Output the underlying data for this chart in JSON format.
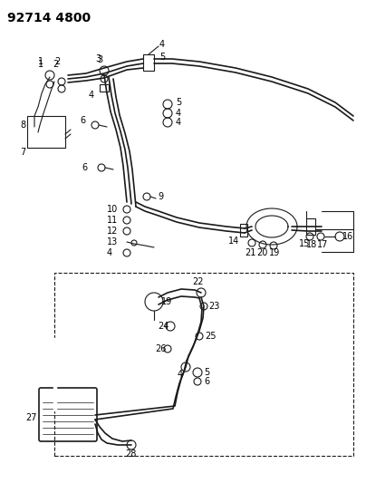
{
  "title": "92714 4800",
  "bg_color": "#ffffff",
  "line_color": "#1a1a1a",
  "text_color": "#000000",
  "title_fontsize": 10,
  "label_fontsize": 7,
  "fig_width": 4.04,
  "fig_height": 5.33,
  "dpi": 100
}
